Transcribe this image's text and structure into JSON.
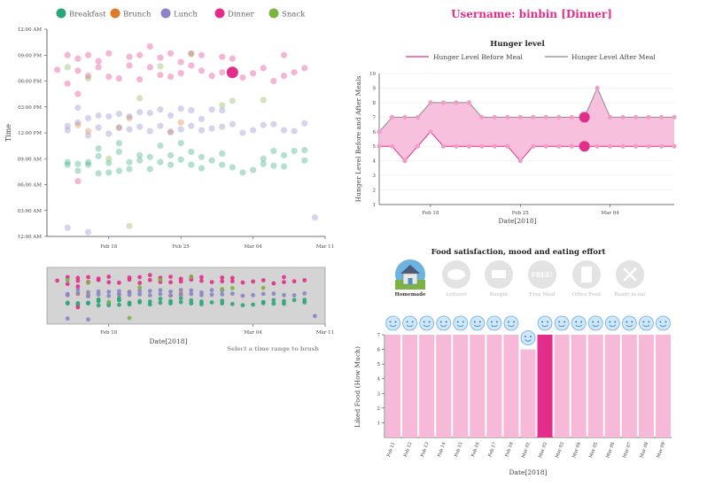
{
  "header": {
    "username_title": "Username: binbin [Dinner]"
  },
  "colors": {
    "breakfast": "#2ba57a",
    "brunch": "#e07a2b",
    "lunch": "#8a84c8",
    "dinner": "#e32d8a",
    "snack": "#7cb342",
    "pink_fill": "#f6b9d8",
    "before_line": "#e32d8a",
    "after_line": "#8c8c8c",
    "brush_bg": "#d4d4d4"
  },
  "legend": [
    {
      "name": "Breakfast",
      "color": "#2ba57a"
    },
    {
      "name": "Brunch",
      "color": "#e07a2b"
    },
    {
      "name": "Lunch",
      "color": "#8a84c8"
    },
    {
      "name": "Dinner",
      "color": "#e32d8a"
    },
    {
      "name": "Snack",
      "color": "#7cb342"
    }
  ],
  "brush_hint": "Select a time range to brush",
  "chart_data": [
    {
      "id": "meal-time-scatter",
      "type": "scatter",
      "title": "",
      "xlabel": "",
      "ylabel": "Time",
      "x_ticks": [
        "Feb 18",
        "Feb 25",
        "Mar 04",
        "Mar 11"
      ],
      "y_ticks": [
        "12:00 AM",
        "03:00 AM",
        "06:00 AM",
        "09:00 AM",
        "12:00 PM",
        "03:00 PM",
        "06:00 PM",
        "09:00 PM",
        "12:00 AM"
      ],
      "xlim": [
        "2018-02-12",
        "2018-03-11"
      ],
      "ylim_hours": [
        0,
        24
      ],
      "series": [
        {
          "name": "Breakfast",
          "points": [
            [
              "2018-02-14",
              8.3
            ],
            [
              "2018-02-14",
              8.6
            ],
            [
              "2018-02-15",
              7.6
            ],
            [
              "2018-02-15",
              8.4
            ],
            [
              "2018-02-16",
              8.3
            ],
            [
              "2018-02-16",
              8.6
            ],
            [
              "2018-02-17",
              7.3
            ],
            [
              "2018-02-17",
              9.3
            ],
            [
              "2018-02-17",
              10.2
            ],
            [
              "2018-02-18",
              8.5
            ],
            [
              "2018-02-18",
              7.4
            ],
            [
              "2018-02-19",
              9.8
            ],
            [
              "2018-02-19",
              10.8
            ],
            [
              "2018-02-19",
              7.6
            ],
            [
              "2018-02-20",
              8.6
            ],
            [
              "2018-02-20",
              7.8
            ],
            [
              "2018-02-21",
              9.4
            ],
            [
              "2018-02-21",
              8.8
            ],
            [
              "2018-02-22",
              9.2
            ],
            [
              "2018-02-22",
              7.8
            ],
            [
              "2018-02-23",
              8.6
            ],
            [
              "2018-02-23",
              10.5
            ],
            [
              "2018-02-24",
              9.4
            ],
            [
              "2018-02-24",
              8.3
            ],
            [
              "2018-02-25",
              10.8
            ],
            [
              "2018-02-25",
              8.9
            ],
            [
              "2018-02-26",
              9.8
            ],
            [
              "2018-02-26",
              8.3
            ],
            [
              "2018-02-27",
              7.9
            ],
            [
              "2018-02-27",
              9.2
            ],
            [
              "2018-02-28",
              8.8
            ],
            [
              "2018-03-01",
              8.3
            ],
            [
              "2018-03-01",
              9.6
            ],
            [
              "2018-03-02",
              8.0
            ],
            [
              "2018-03-03",
              7.4
            ],
            [
              "2018-03-04",
              7.7
            ],
            [
              "2018-03-05",
              9.0
            ],
            [
              "2018-03-05",
              8.4
            ],
            [
              "2018-03-06",
              9.9
            ],
            [
              "2018-03-06",
              8.2
            ],
            [
              "2018-03-07",
              9.4
            ],
            [
              "2018-03-07",
              8.1
            ],
            [
              "2018-03-08",
              9.9
            ],
            [
              "2018-03-09",
              8.8
            ],
            [
              "2018-03-09",
              10.0
            ]
          ]
        },
        {
          "name": "Brunch",
          "points": [
            [
              "2018-02-15",
              12.9
            ],
            [
              "2018-02-16",
              12.2
            ],
            [
              "2018-02-19",
              12.6
            ],
            [
              "2018-02-20",
              13.7
            ],
            [
              "2018-02-24",
              12.1
            ],
            [
              "2018-02-25",
              13.2
            ]
          ]
        },
        {
          "name": "Lunch",
          "points": [
            [
              "2018-02-14",
              12.3
            ],
            [
              "2018-02-14",
              12.8
            ],
            [
              "2018-02-15",
              14.9
            ],
            [
              "2018-02-15",
              13.2
            ],
            [
              "2018-02-16",
              11.7
            ],
            [
              "2018-02-16",
              13.7
            ],
            [
              "2018-02-17",
              12.6
            ],
            [
              "2018-02-17",
              14.0
            ],
            [
              "2018-02-18",
              11.9
            ],
            [
              "2018-02-18",
              13.9
            ],
            [
              "2018-02-19",
              12.6
            ],
            [
              "2018-02-19",
              14.2
            ],
            [
              "2018-02-20",
              12.4
            ],
            [
              "2018-02-20",
              13.9
            ],
            [
              "2018-02-21",
              12.7
            ],
            [
              "2018-02-21",
              14.4
            ],
            [
              "2018-02-22",
              12.2
            ],
            [
              "2018-02-22",
              14.3
            ],
            [
              "2018-02-23",
              12.8
            ],
            [
              "2018-02-23",
              14.7
            ],
            [
              "2018-02-24",
              12.1
            ],
            [
              "2018-02-24",
              14.0
            ],
            [
              "2018-02-25",
              14.8
            ],
            [
              "2018-02-25",
              12.4
            ],
            [
              "2018-02-26",
              12.8
            ],
            [
              "2018-02-26",
              14.6
            ],
            [
              "2018-02-27",
              13.6
            ],
            [
              "2018-02-27",
              12.3
            ],
            [
              "2018-02-28",
              14.7
            ],
            [
              "2018-02-28",
              12.5
            ],
            [
              "2018-03-01",
              14.6
            ],
            [
              "2018-03-01",
              12.7
            ],
            [
              "2018-03-02",
              13.0
            ],
            [
              "2018-03-03",
              12.0
            ],
            [
              "2018-03-04",
              12.3
            ],
            [
              "2018-03-05",
              12.9
            ],
            [
              "2018-03-06",
              13.0
            ],
            [
              "2018-03-07",
              12.3
            ],
            [
              "2018-03-08",
              12.2
            ],
            [
              "2018-03-09",
              13.1
            ],
            [
              "2018-02-14",
              1.0
            ],
            [
              "2018-02-16",
              0.5
            ],
            [
              "2018-03-10",
              2.2
            ]
          ]
        },
        {
          "name": "Dinner",
          "points": [
            [
              "2018-02-13",
              19.3
            ],
            [
              "2018-02-14",
              21.0
            ],
            [
              "2018-02-14",
              17.7
            ],
            [
              "2018-02-15",
              19.2
            ],
            [
              "2018-02-15",
              20.6
            ],
            [
              "2018-02-16",
              21.0
            ],
            [
              "2018-02-16",
              18.6
            ],
            [
              "2018-02-17",
              19.6
            ],
            [
              "2018-02-17",
              20.3
            ],
            [
              "2018-02-18",
              21.2
            ],
            [
              "2018-02-18",
              18.5
            ],
            [
              "2018-02-19",
              18.3
            ],
            [
              "2018-02-20",
              19.8
            ],
            [
              "2018-02-20",
              20.8
            ],
            [
              "2018-02-21",
              18.2
            ],
            [
              "2018-02-21",
              21.0
            ],
            [
              "2018-02-22",
              19.6
            ],
            [
              "2018-02-22",
              22.0
            ],
            [
              "2018-02-23",
              18.7
            ],
            [
              "2018-02-23",
              20.7
            ],
            [
              "2018-02-24",
              18.5
            ],
            [
              "2018-02-24",
              21.2
            ],
            [
              "2018-02-25",
              18.9
            ],
            [
              "2018-02-25",
              20.2
            ],
            [
              "2018-02-26",
              19.8
            ],
            [
              "2018-02-26",
              21.2
            ],
            [
              "2018-02-27",
              19.2
            ],
            [
              "2018-02-27",
              21.0
            ],
            [
              "2018-02-28",
              18.6
            ],
            [
              "2018-03-01",
              19.0
            ],
            [
              "2018-03-01",
              20.8
            ],
            [
              "2018-03-02",
              20.6
            ],
            [
              "2018-03-03",
              18.4
            ],
            [
              "2018-03-04",
              18.9
            ],
            [
              "2018-03-05",
              19.5
            ],
            [
              "2018-03-06",
              18.0
            ],
            [
              "2018-03-07",
              21.0
            ],
            [
              "2018-03-07",
              18.6
            ],
            [
              "2018-03-08",
              19.0
            ],
            [
              "2018-03-09",
              19.5
            ],
            [
              "2018-02-15",
              6.4
            ],
            [
              "2018-02-15",
              16.5
            ],
            [
              "2018-03-02",
              19.0
            ]
          ]
        },
        {
          "name": "Snack",
          "points": [
            [
              "2018-02-14",
              19.6
            ],
            [
              "2018-02-16",
              18.3
            ],
            [
              "2018-02-18",
              9.0
            ],
            [
              "2018-02-20",
              1.2
            ],
            [
              "2018-02-21",
              16.0
            ],
            [
              "2018-02-23",
              19.7
            ],
            [
              "2018-02-26",
              21.1
            ],
            [
              "2018-03-01",
              15.2
            ],
            [
              "2018-03-02",
              15.7
            ],
            [
              "2018-03-05",
              15.8
            ]
          ]
        }
      ],
      "highlight": {
        "series": "Dinner",
        "x": "2018-03-02",
        "y": 19.0
      }
    },
    {
      "id": "brush-overview",
      "type": "scatter",
      "title": "",
      "xlabel": "Date[2018]",
      "x_ticks": [
        "Feb 18",
        "Mar 04",
        "Mar 11"
      ],
      "xlim": [
        "2018-02-12",
        "2018-03-11"
      ]
    },
    {
      "id": "hunger-level",
      "type": "area",
      "title": "Hunger level",
      "xlabel": "Date[2018]",
      "ylabel": "Hunger Level Before and After Meals",
      "x_ticks": [
        "Feb 18",
        "Feb 25",
        "Mar 04"
      ],
      "y_ticks": [
        "1",
        "2",
        "3",
        "4",
        "5",
        "6",
        "7",
        "8",
        "9",
        "10"
      ],
      "ylim": [
        1,
        10
      ],
      "x": [
        "2018-02-14",
        "2018-02-15",
        "2018-02-16",
        "2018-02-17",
        "2018-02-18",
        "2018-02-19",
        "2018-02-20",
        "2018-02-21",
        "2018-02-22",
        "2018-02-23",
        "2018-02-24",
        "2018-02-25",
        "2018-02-26",
        "2018-02-27",
        "2018-02-28",
        "2018-03-01",
        "2018-03-02",
        "2018-03-03",
        "2018-03-04",
        "2018-03-05",
        "2018-03-06",
        "2018-03-07",
        "2018-03-08",
        "2018-03-09"
      ],
      "series": [
        {
          "name": "Hunger Level Before Meal",
          "values": [
            5,
            5,
            4,
            5,
            6,
            5,
            5,
            5,
            5,
            5,
            5,
            4,
            5,
            5,
            5,
            5,
            5,
            5,
            5,
            5,
            5,
            5,
            5,
            5
          ]
        },
        {
          "name": "Hunger Level After Meal",
          "values": [
            6,
            7,
            7,
            7,
            8,
            8,
            8,
            8,
            7,
            7,
            7,
            7,
            7,
            7,
            7,
            7,
            7,
            9,
            7,
            7,
            7,
            7,
            7,
            7
          ]
        }
      ],
      "highlight_x": "2018-03-02"
    },
    {
      "id": "liked-food",
      "type": "bar",
      "title": "Food satisfaction, mood and eating effort",
      "xlabel": "Date[2018]",
      "ylabel": "Liked Food (How Much)",
      "categories": [
        "Feb 11",
        "Feb 12",
        "Feb 13",
        "Feb 14",
        "Feb 15",
        "Feb 16",
        "Feb 17",
        "Feb 18",
        "Mar 01",
        "Mar 02",
        "Mar 03",
        "Mar 04",
        "Mar 05",
        "Mar 06",
        "Mar 07",
        "Mar 08",
        "Mar 09"
      ],
      "values": [
        7,
        7,
        7,
        7,
        7,
        7,
        7,
        7,
        6,
        7,
        7,
        7,
        7,
        7,
        7,
        7,
        7
      ],
      "y_ticks": [
        "1",
        "2",
        "3",
        "4",
        "5",
        "6",
        "7"
      ],
      "ylim": [
        1,
        7
      ],
      "highlight_category": "Mar 02",
      "mood_icon": "smiley-icon"
    }
  ],
  "food_types": [
    {
      "label": "Homemade",
      "icon": "house-icon",
      "active": true
    },
    {
      "label": "Leftover",
      "icon": "leftover-icon",
      "active": false
    },
    {
      "label": "Bought",
      "icon": "shopping-cart-icon",
      "active": false
    },
    {
      "label": "Free Meal",
      "icon": "free-badge-icon",
      "active": false
    },
    {
      "label": "Office Food",
      "icon": "office-building-icon",
      "active": false
    },
    {
      "label": "Ready to eat",
      "icon": "fork-knife-icon",
      "active": false
    }
  ]
}
